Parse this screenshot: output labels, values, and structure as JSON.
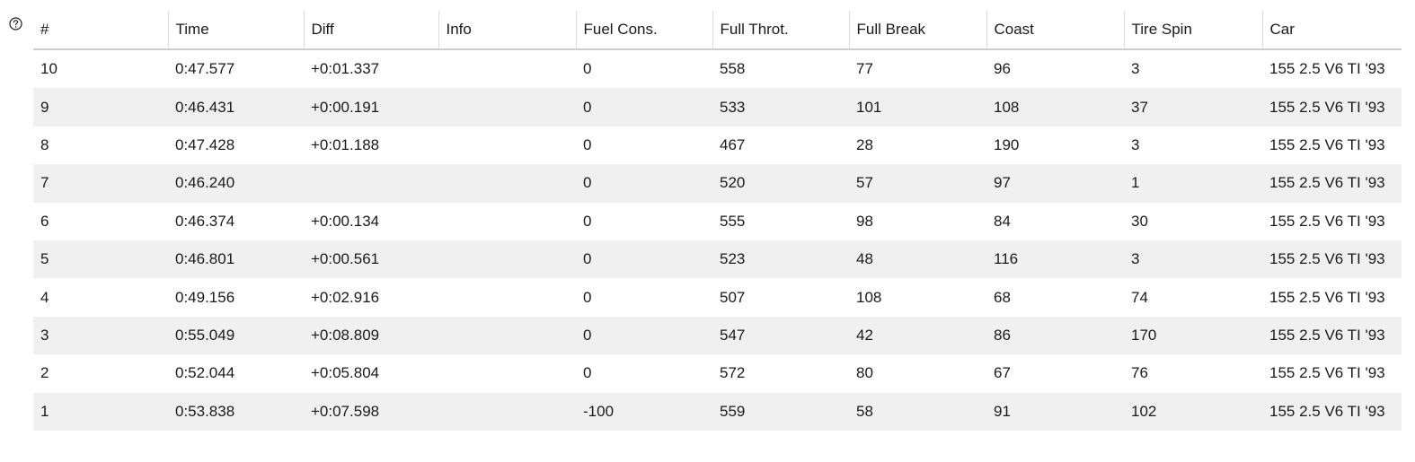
{
  "help_icon": "question-circle-icon",
  "table": {
    "columns": [
      "#",
      "Time",
      "Diff",
      "Info",
      "Fuel Cons.",
      "Full Throt.",
      "Full Break",
      "Coast",
      "Tire Spin",
      "Car"
    ],
    "rows": [
      [
        "10",
        "0:47.577",
        "+0:01.337",
        "",
        "0",
        "558",
        "77",
        "96",
        "3",
        "155 2.5 V6 TI '93"
      ],
      [
        "9",
        "0:46.431",
        "+0:00.191",
        "",
        "0",
        "533",
        "101",
        "108",
        "37",
        "155 2.5 V6 TI '93"
      ],
      [
        "8",
        "0:47.428",
        "+0:01.188",
        "",
        "0",
        "467",
        "28",
        "190",
        "3",
        "155 2.5 V6 TI '93"
      ],
      [
        "7",
        "0:46.240",
        "",
        "",
        "0",
        "520",
        "57",
        "97",
        "1",
        "155 2.5 V6 TI '93"
      ],
      [
        "6",
        "0:46.374",
        "+0:00.134",
        "",
        "0",
        "555",
        "98",
        "84",
        "30",
        "155 2.5 V6 TI '93"
      ],
      [
        "5",
        "0:46.801",
        "+0:00.561",
        "",
        "0",
        "523",
        "48",
        "116",
        "3",
        "155 2.5 V6 TI '93"
      ],
      [
        "4",
        "0:49.156",
        "+0:02.916",
        "",
        "0",
        "507",
        "108",
        "68",
        "74",
        "155 2.5 V6 TI '93"
      ],
      [
        "3",
        "0:55.049",
        "+0:08.809",
        "",
        "0",
        "547",
        "42",
        "86",
        "170",
        "155 2.5 V6 TI '93"
      ],
      [
        "2",
        "0:52.044",
        "+0:05.804",
        "",
        "0",
        "572",
        "80",
        "67",
        "76",
        "155 2.5 V6 TI '93"
      ],
      [
        "1",
        "0:53.838",
        "+0:07.598",
        "",
        "-100",
        "559",
        "58",
        "91",
        "102",
        "155 2.5 V6 TI '93"
      ]
    ]
  }
}
